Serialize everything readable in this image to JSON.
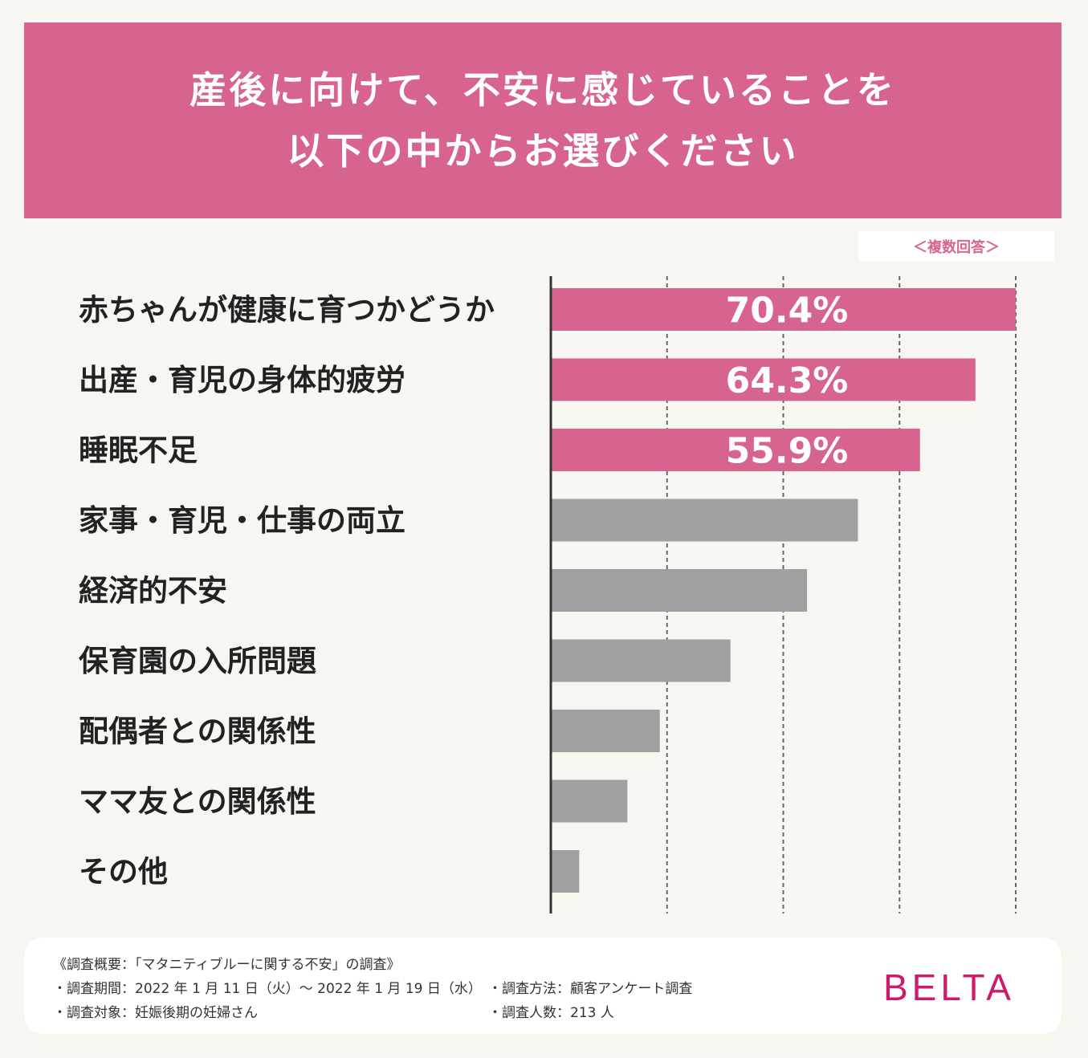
{
  "header": {
    "title_line1": "産後に向けて、不安に感じていることを",
    "title_line2": "以下の中からお選びください"
  },
  "note": "＜複数回答＞",
  "chart_data": {
    "type": "bar",
    "orientation": "horizontal",
    "categories": [
      "赤ちゃんが健康に育つかどうか",
      "出産・育児の身体的疲労",
      "睡眠不足",
      "家事・育児・仕事の両立",
      "経済的不安",
      "保育園の入所問題",
      "配偶者との関係性",
      "ママ友との関係性",
      "その他"
    ],
    "values": [
      70.4,
      64.3,
      55.9,
      46.5,
      38.8,
      27.2,
      16.5,
      11.6,
      4.3
    ],
    "value_labels": [
      "70.4%",
      "64.3%",
      "55.9%",
      "",
      "",
      "",
      "",
      "",
      ""
    ],
    "xlim": [
      0,
      70.4
    ],
    "grid": "vertical dashed",
    "colors": {
      "highlight": "#d76490",
      "other": "#a0a0a0",
      "axis": "#333333",
      "grid": "#666666"
    }
  },
  "footer": {
    "summary": "《調査概要：「マタニティブルーに関する不安」の調査》",
    "period": "・調査期間：2022 年 1 月 11 日（火）〜 2022 年 1 月 19 日（水）",
    "target": "・調査対象：妊娠後期の妊婦さん",
    "method": "・調査方法：顧客アンケート調査",
    "count": "・調査人数：213 人",
    "logo": "BELTA",
    "logo_color": "#cf1a6c"
  }
}
